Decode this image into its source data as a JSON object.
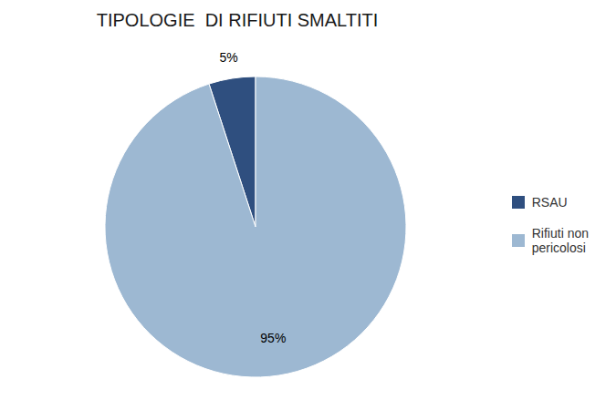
{
  "chart_data": {
    "type": "pie",
    "title": "TIPOLOGIE  DI RIFIUTI SMALTITI",
    "categories": [
      "RSAU",
      "Rifiuti non\npericolosi"
    ],
    "values": [
      5,
      95
    ],
    "value_labels": [
      "5%",
      "95%"
    ],
    "colors": [
      "#2f4f7f",
      "#9db8d2"
    ],
    "legend": "right",
    "data_labels": true
  }
}
